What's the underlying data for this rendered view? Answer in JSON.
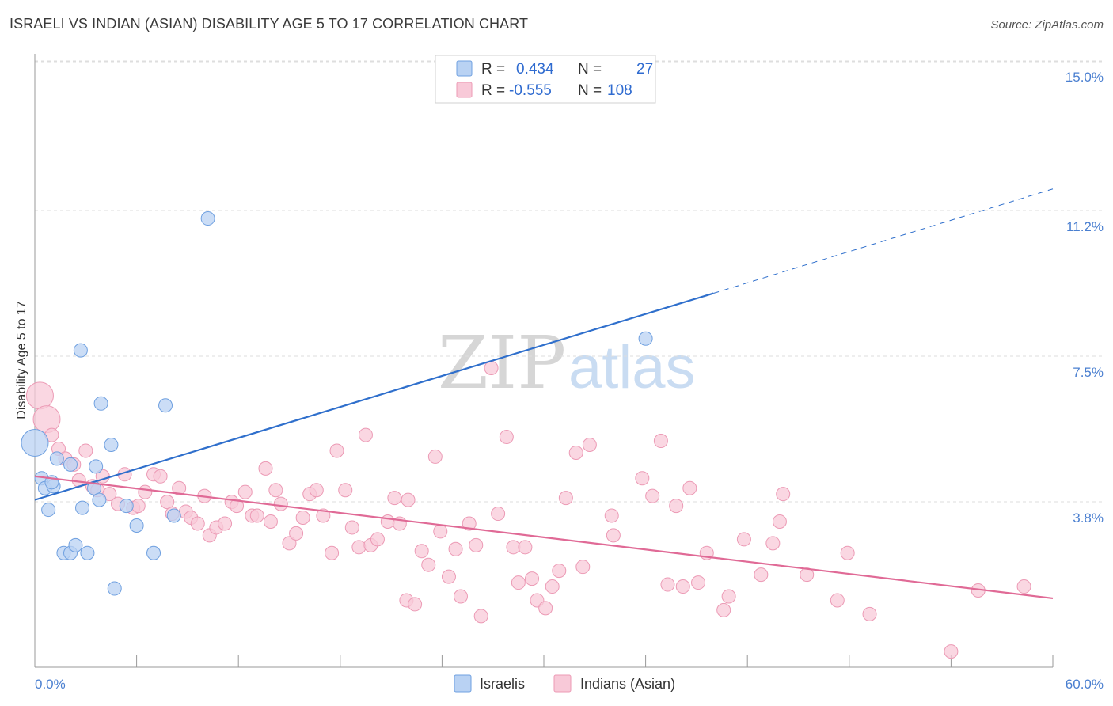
{
  "chart_data": {
    "type": "scatter",
    "title": "ISRAELI VS INDIAN (ASIAN) DISABILITY AGE 5 TO 17 CORRELATION CHART",
    "source": "Source: ZipAtlas.com",
    "xlabel": "",
    "ylabel": "Disability Age 5 to 17",
    "xlim": [
      0,
      60
    ],
    "ylim": [
      0,
      15.5
    ],
    "x_tick_labels": [
      "0.0%",
      "60.0%"
    ],
    "y_ticks": [
      3.8,
      7.5,
      11.2,
      15.0
    ],
    "y_tick_labels": [
      "3.8%",
      "7.5%",
      "11.2%",
      "15.0%"
    ],
    "grid": true,
    "watermark": {
      "zip": "ZIP",
      "atlas": "atlas"
    },
    "legend": {
      "position": "top-center",
      "rows": [
        {
          "r_label": "R =",
          "r_value": "0.434",
          "n_label": "N =",
          "n_value": "27"
        },
        {
          "r_label": "R =",
          "r_value": "-0.555",
          "n_label": "N =",
          "n_value": "108"
        }
      ]
    },
    "series": [
      {
        "name": "Israelis",
        "color": "#6fa0e0",
        "fill": "#b9d2f3",
        "line_color": "#2f6fcc",
        "trend": {
          "x0": 0,
          "y0": 4.25,
          "x1": 40,
          "y1": 9.5,
          "dash_to_x": 60,
          "dash_to_y": 12.15
        },
        "points": [
          {
            "x": 0.0,
            "y": 5.7,
            "big": true
          },
          {
            "x": 0.4,
            "y": 4.8
          },
          {
            "x": 0.6,
            "y": 4.55
          },
          {
            "x": 1.1,
            "y": 4.6
          },
          {
            "x": 0.8,
            "y": 4.0
          },
          {
            "x": 1.3,
            "y": 5.3
          },
          {
            "x": 2.1,
            "y": 5.15
          },
          {
            "x": 2.7,
            "y": 8.05
          },
          {
            "x": 2.8,
            "y": 4.05
          },
          {
            "x": 3.5,
            "y": 4.55
          },
          {
            "x": 3.6,
            "y": 5.1
          },
          {
            "x": 3.8,
            "y": 4.25
          },
          {
            "x": 3.9,
            "y": 6.7
          },
          {
            "x": 4.5,
            "y": 5.65
          },
          {
            "x": 5.4,
            "y": 4.1
          },
          {
            "x": 6.0,
            "y": 3.6
          },
          {
            "x": 7.0,
            "y": 2.9
          },
          {
            "x": 7.7,
            "y": 6.65
          },
          {
            "x": 8.2,
            "y": 3.85
          },
          {
            "x": 10.2,
            "y": 11.4
          },
          {
            "x": 1.7,
            "y": 2.9
          },
          {
            "x": 2.1,
            "y": 2.9
          },
          {
            "x": 2.4,
            "y": 3.1
          },
          {
            "x": 3.1,
            "y": 2.9
          },
          {
            "x": 4.7,
            "y": 2.0
          },
          {
            "x": 36.0,
            "y": 8.35
          },
          {
            "x": 1.0,
            "y": 4.7
          }
        ]
      },
      {
        "name": "Indians (Asian)",
        "color": "#ec9ab5",
        "fill": "#f8c9d8",
        "line_color": "#e06a96",
        "trend": {
          "x0": 0,
          "y0": 4.85,
          "x1": 60,
          "y1": 1.75
        },
        "points": [
          {
            "x": 0.3,
            "y": 6.9,
            "big": true
          },
          {
            "x": 0.7,
            "y": 6.3,
            "big": true
          },
          {
            "x": 1.0,
            "y": 5.9
          },
          {
            "x": 1.4,
            "y": 5.55
          },
          {
            "x": 1.8,
            "y": 5.3
          },
          {
            "x": 2.3,
            "y": 5.15
          },
          {
            "x": 2.6,
            "y": 4.75
          },
          {
            "x": 3.0,
            "y": 5.5
          },
          {
            "x": 3.4,
            "y": 4.6
          },
          {
            "x": 3.7,
            "y": 4.5
          },
          {
            "x": 4.0,
            "y": 4.85
          },
          {
            "x": 4.4,
            "y": 4.4
          },
          {
            "x": 4.9,
            "y": 4.15
          },
          {
            "x": 5.3,
            "y": 4.9
          },
          {
            "x": 5.8,
            "y": 4.05
          },
          {
            "x": 6.1,
            "y": 4.1
          },
          {
            "x": 6.5,
            "y": 4.45
          },
          {
            "x": 7.0,
            "y": 4.9
          },
          {
            "x": 7.4,
            "y": 4.85
          },
          {
            "x": 7.8,
            "y": 4.2
          },
          {
            "x": 8.1,
            "y": 3.9
          },
          {
            "x": 8.5,
            "y": 4.55
          },
          {
            "x": 8.9,
            "y": 3.95
          },
          {
            "x": 9.2,
            "y": 3.8
          },
          {
            "x": 9.6,
            "y": 3.65
          },
          {
            "x": 10.0,
            "y": 4.35
          },
          {
            "x": 10.3,
            "y": 3.35
          },
          {
            "x": 10.7,
            "y": 3.55
          },
          {
            "x": 11.2,
            "y": 3.65
          },
          {
            "x": 11.6,
            "y": 4.2
          },
          {
            "x": 11.9,
            "y": 4.1
          },
          {
            "x": 12.4,
            "y": 4.45
          },
          {
            "x": 12.8,
            "y": 3.85
          },
          {
            "x": 13.1,
            "y": 3.85
          },
          {
            "x": 13.6,
            "y": 5.05
          },
          {
            "x": 13.9,
            "y": 3.7
          },
          {
            "x": 14.2,
            "y": 4.5
          },
          {
            "x": 14.5,
            "y": 4.15
          },
          {
            "x": 15.0,
            "y": 3.15
          },
          {
            "x": 15.4,
            "y": 3.4
          },
          {
            "x": 15.8,
            "y": 3.8
          },
          {
            "x": 16.2,
            "y": 4.4
          },
          {
            "x": 16.6,
            "y": 4.5
          },
          {
            "x": 17.0,
            "y": 3.85
          },
          {
            "x": 17.5,
            "y": 2.9
          },
          {
            "x": 17.8,
            "y": 5.5
          },
          {
            "x": 18.3,
            "y": 4.5
          },
          {
            "x": 18.7,
            "y": 3.55
          },
          {
            "x": 19.1,
            "y": 3.05
          },
          {
            "x": 19.5,
            "y": 5.9
          },
          {
            "x": 19.8,
            "y": 3.1
          },
          {
            "x": 20.2,
            "y": 3.25
          },
          {
            "x": 20.8,
            "y": 3.7
          },
          {
            "x": 21.2,
            "y": 4.3
          },
          {
            "x": 21.5,
            "y": 3.65
          },
          {
            "x": 22.0,
            "y": 4.25
          },
          {
            "x": 21.9,
            "y": 1.7
          },
          {
            "x": 22.4,
            "y": 1.6
          },
          {
            "x": 22.8,
            "y": 2.95
          },
          {
            "x": 23.2,
            "y": 2.6
          },
          {
            "x": 23.6,
            "y": 5.35
          },
          {
            "x": 23.9,
            "y": 3.45
          },
          {
            "x": 24.4,
            "y": 2.3
          },
          {
            "x": 24.8,
            "y": 3.0
          },
          {
            "x": 25.1,
            "y": 1.8
          },
          {
            "x": 25.6,
            "y": 3.65
          },
          {
            "x": 26.0,
            "y": 3.1
          },
          {
            "x": 26.3,
            "y": 1.3
          },
          {
            "x": 26.9,
            "y": 7.6
          },
          {
            "x": 27.3,
            "y": 3.9
          },
          {
            "x": 27.8,
            "y": 5.85
          },
          {
            "x": 28.2,
            "y": 3.05
          },
          {
            "x": 28.5,
            "y": 2.15
          },
          {
            "x": 28.9,
            "y": 3.05
          },
          {
            "x": 29.3,
            "y": 2.25
          },
          {
            "x": 29.6,
            "y": 1.7
          },
          {
            "x": 30.1,
            "y": 1.5
          },
          {
            "x": 30.5,
            "y": 2.05
          },
          {
            "x": 30.9,
            "y": 2.45
          },
          {
            "x": 31.3,
            "y": 4.3
          },
          {
            "x": 31.9,
            "y": 5.45
          },
          {
            "x": 32.3,
            "y": 2.55
          },
          {
            "x": 32.7,
            "y": 5.65
          },
          {
            "x": 34.0,
            "y": 3.85
          },
          {
            "x": 34.1,
            "y": 3.35
          },
          {
            "x": 35.8,
            "y": 4.8
          },
          {
            "x": 36.4,
            "y": 4.35
          },
          {
            "x": 36.9,
            "y": 5.75
          },
          {
            "x": 37.3,
            "y": 2.1
          },
          {
            "x": 37.8,
            "y": 4.1
          },
          {
            "x": 38.2,
            "y": 2.05
          },
          {
            "x": 38.6,
            "y": 4.55
          },
          {
            "x": 39.1,
            "y": 2.15
          },
          {
            "x": 39.6,
            "y": 2.9
          },
          {
            "x": 40.6,
            "y": 1.45
          },
          {
            "x": 40.9,
            "y": 1.8
          },
          {
            "x": 41.8,
            "y": 3.25
          },
          {
            "x": 42.8,
            "y": 2.35
          },
          {
            "x": 43.5,
            "y": 3.15
          },
          {
            "x": 43.9,
            "y": 3.7
          },
          {
            "x": 44.1,
            "y": 4.4
          },
          {
            "x": 45.5,
            "y": 2.35
          },
          {
            "x": 47.3,
            "y": 1.7
          },
          {
            "x": 47.9,
            "y": 2.9
          },
          {
            "x": 49.2,
            "y": 1.35
          },
          {
            "x": 54.0,
            "y": 0.4
          },
          {
            "x": 55.6,
            "y": 1.95
          },
          {
            "x": 58.3,
            "y": 2.05
          }
        ]
      }
    ]
  }
}
